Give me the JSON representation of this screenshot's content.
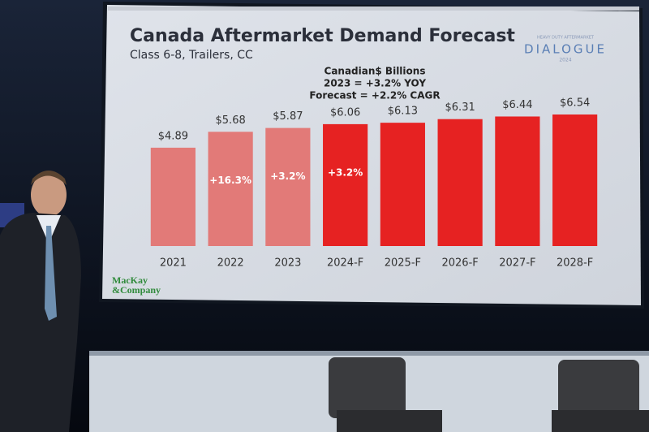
{
  "chart_data": {
    "type": "bar",
    "title": "Canada Aftermarket Demand Forecast",
    "subtitle": "Class 6-8, Trailers, CC",
    "notes": [
      "Canadian$ Billions",
      "2023 = +3.2% YOY",
      "Forecast = +2.2% CAGR"
    ],
    "categories": [
      "2021",
      "2022",
      "2023",
      "2024-F",
      "2025-F",
      "2026-F",
      "2027-F",
      "2028-F"
    ],
    "values": [
      4.89,
      5.68,
      5.87,
      6.06,
      6.13,
      6.31,
      6.44,
      6.54
    ],
    "value_labels": [
      "$4.89",
      "$5.68",
      "$5.87",
      "$6.06",
      "$6.13",
      "$6.31",
      "$6.44",
      "$6.54"
    ],
    "growth_labels": [
      null,
      "+16.3%",
      "+3.2%",
      "+3.2%",
      null,
      null,
      null,
      null
    ],
    "colors": [
      "#e27a78",
      "#e27a78",
      "#e27a78",
      "#e62222",
      "#e62222",
      "#e62222",
      "#e62222",
      "#e62222"
    ],
    "source_logo": [
      "MacKay",
      "&Company"
    ],
    "event_logo": {
      "tagline": "HEAVY DUTY AFTERMARKET",
      "name": "DIALOGUE",
      "year": "2024"
    }
  }
}
